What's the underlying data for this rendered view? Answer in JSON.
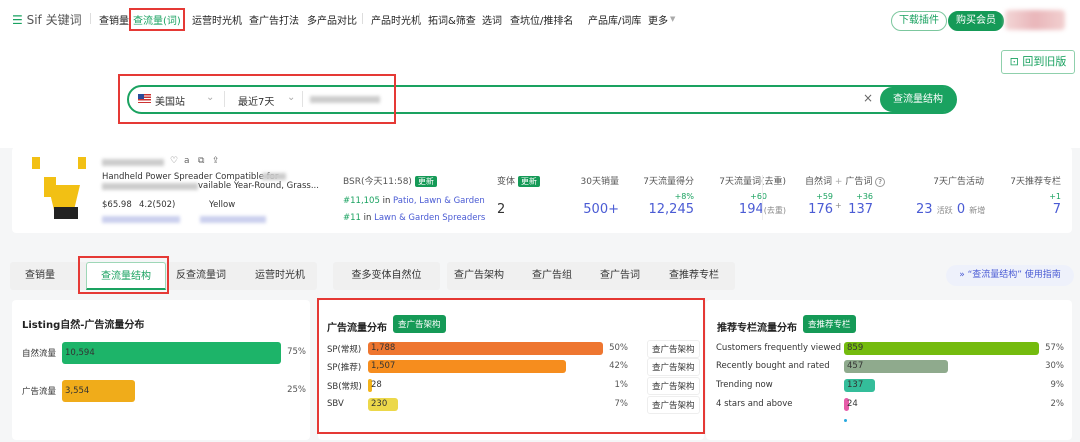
{
  "header": {
    "logo_mark": "☰",
    "logo_text": "Sif 关键词",
    "nav": [
      "查销量",
      "查流量(词)",
      "运营时光机",
      "查广告打法",
      "多产品对比",
      "产品时光机",
      "拓词&筛查",
      "选词",
      "查坑位/推排名",
      "产品库/词库",
      "更多"
    ],
    "active_nav": "查流量(词)",
    "download": "下载插件",
    "buy": "购买会员"
  },
  "old_version": "回到旧版",
  "search": {
    "site": "美国站",
    "range": "最近7天",
    "button": "查流量结构",
    "clear": "×"
  },
  "product": {
    "title_line1": "Handheld Power Spreader Compatible for",
    "title_line2": "vailable Year-Round, Grass...",
    "price": "$65.98",
    "rating": "4.2(502)",
    "color": "Yellow",
    "bsr_label": "BSR(今天11:58)",
    "update": "更新",
    "bsr": [
      {
        "rank": "#11,105",
        "in": "in",
        "cat": "Patio, Lawn & Garden"
      },
      {
        "rank": "#11",
        "in": "in",
        "cat": "Lawn & Garden Spreaders"
      }
    ]
  },
  "stats": {
    "variants_label": "变体",
    "variants": "2",
    "sales_label": "30天销量",
    "sales": "500+",
    "score_label": "7天流量得分",
    "score_delta": "+8%",
    "score": "12,245",
    "words_label": "7天流量词(去重)",
    "words_delta": "+60",
    "words": "194",
    "words_unit": "(去重)",
    "natural_label": "自然词",
    "plus": "+",
    "ad_label": "广告词",
    "help": "?",
    "natural_delta": "+59",
    "natural": "176",
    "ad_delta": "+36",
    "ad": "137",
    "ad_act_label": "7天广告活动",
    "ad_active": "23",
    "active_unit": "活跃",
    "ad_new": "0",
    "new_unit": "新增",
    "rec_label": "7天推荐专栏",
    "rec_delta": "+1",
    "rec": "7"
  },
  "tabs": [
    "查销量",
    "查流量结构",
    "反查流量词",
    "运营时光机",
    "查多变体自然位",
    "查广告架构",
    "查广告组",
    "查广告词",
    "查推荐专栏"
  ],
  "active_tab": "查流量结构",
  "guide": "“查流量结构” 使用指南",
  "panels": {
    "listing": {
      "title": "Listing自然-广告流量分布",
      "rows": [
        {
          "label": "自然流量",
          "value": 10594,
          "display": "10,594",
          "pct": "75%",
          "color": "#1db469"
        },
        {
          "label": "广告流量",
          "value": 3554,
          "display": "3,554",
          "pct": "25%",
          "color": "#f0ac1a"
        }
      ]
    },
    "ads": {
      "title": "广告流量分布",
      "button": "查广告架构",
      "rows": [
        {
          "label": "SP(常规)",
          "value": 1788,
          "display": "1,788",
          "pct": "50%",
          "color": "#ee7630",
          "link": "查广告架构"
        },
        {
          "label": "SP(推荐)",
          "value": 1507,
          "display": "1,507",
          "pct": "42%",
          "color": "#f68d1e",
          "link": "查广告架构"
        },
        {
          "label": "SB(常规)",
          "value": 28,
          "display": "28",
          "pct": "1%",
          "color": "#f4b41a",
          "link": "查广告架构"
        },
        {
          "label": "SBV",
          "value": 230,
          "display": "230",
          "pct": "7%",
          "color": "#ecd84a",
          "link": "查广告架构"
        }
      ]
    },
    "rec": {
      "title": "推荐专栏流量分布",
      "button": "查推荐专栏",
      "rows": [
        {
          "label": "Customers frequently viewed",
          "value": 859,
          "display": "859",
          "pct": "57%",
          "color": "#74bb0e"
        },
        {
          "label": "Recently bought and rated",
          "value": 457,
          "display": "457",
          "pct": "30%",
          "color": "#8faa8d"
        },
        {
          "label": "Trending now",
          "value": 137,
          "display": "137",
          "pct": "9%",
          "color": "#34bd9a"
        },
        {
          "label": "4 stars and above",
          "value": 24,
          "display": "24",
          "pct": "2%",
          "color": "#e65ba8"
        }
      ]
    }
  }
}
